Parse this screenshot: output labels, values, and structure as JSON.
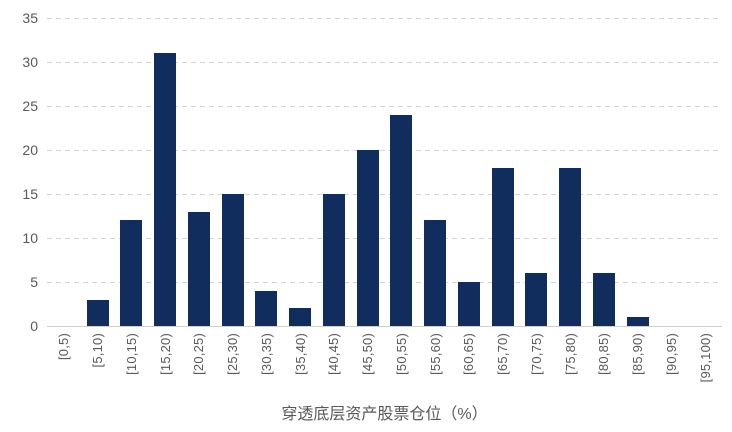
{
  "chart_data": {
    "type": "bar",
    "title": "",
    "xlabel": "穿透底层资产股票仓位（%）",
    "ylabel": "",
    "categories": [
      "[0,5)",
      "[5,10)",
      "[10,15)",
      "[15,20)",
      "[20,25)",
      "[25,30)",
      "[30,35)",
      "[35,40)",
      "[40,45)",
      "[45,50)",
      "[50,55)",
      "[55,60)",
      "[60,65)",
      "[65,70)",
      "[70,75)",
      "[75,80)",
      "[80,85)",
      "[85,90)",
      "[90,95)",
      "[95,100)"
    ],
    "values": [
      0,
      3,
      12,
      31,
      13,
      15,
      4,
      2,
      15,
      20,
      24,
      12,
      5,
      18,
      6,
      18,
      6,
      1,
      0,
      0
    ],
    "ylim": [
      0,
      35
    ],
    "yticks": [
      0,
      5,
      10,
      15,
      20,
      25,
      30,
      35
    ],
    "grid": "horizontal-dashed",
    "legend": "none",
    "bar_color": "#112D5E",
    "tick_label_color": "#595959",
    "gridline_color": "#D4D4D4",
    "axis_line_color": "#D0D0D0",
    "background_color": "#FFFFFF"
  }
}
